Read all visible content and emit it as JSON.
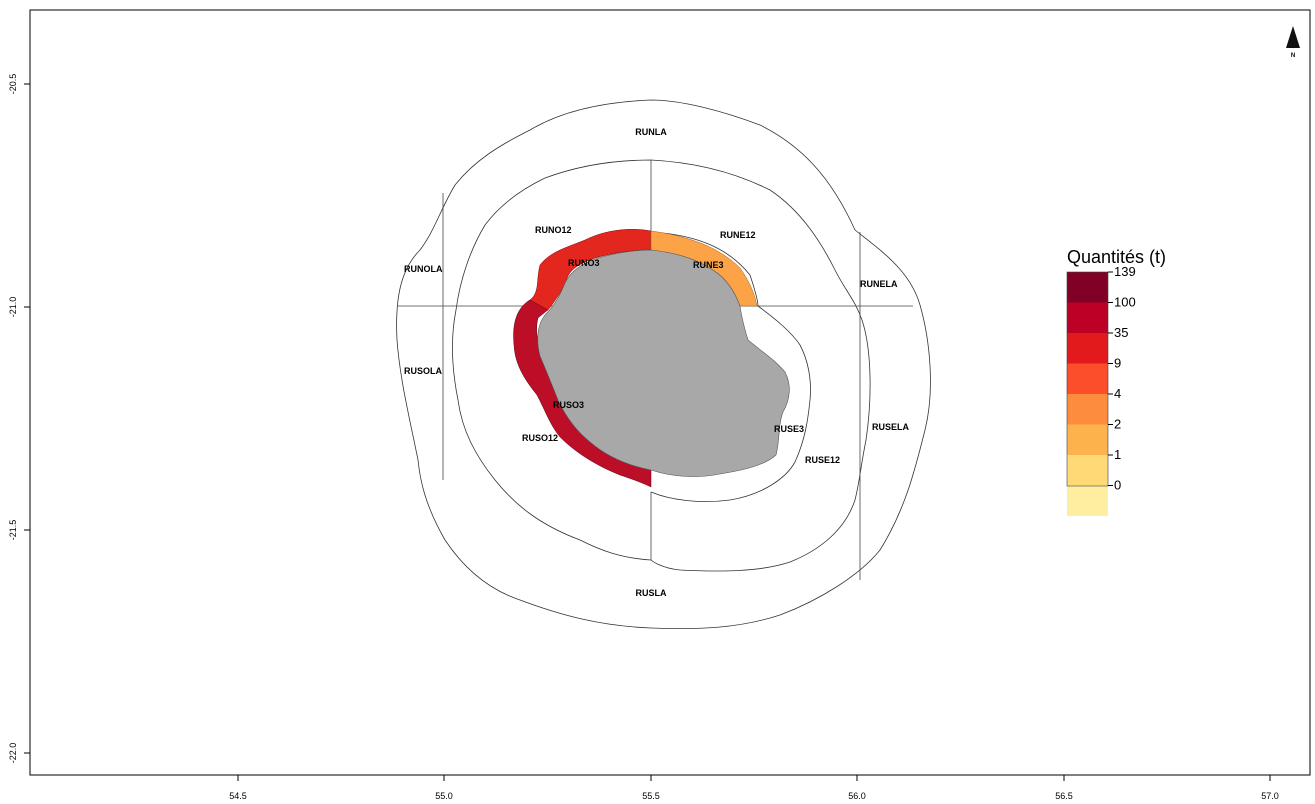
{
  "map": {
    "x_ticks": [
      "54.5",
      "55.0",
      "55.5",
      "56.0",
      "56.5",
      "57.0"
    ],
    "y_ticks": [
      "-20.5",
      "-21.0",
      "-21.5",
      "-22.0"
    ],
    "north_label": "N"
  },
  "zones": [
    {
      "id": "RUNLA",
      "value": ""
    },
    {
      "id": "RUNOLA",
      "value": ""
    },
    {
      "id": "RUNELA",
      "value": ""
    },
    {
      "id": "RUSOLA",
      "value": ""
    },
    {
      "id": "RUSELA",
      "value": ""
    },
    {
      "id": "RUSLA",
      "value": ""
    },
    {
      "id": "RUNO12",
      "value": ""
    },
    {
      "id": "RUNE12",
      "value": ""
    },
    {
      "id": "RUSO12",
      "value": ""
    },
    {
      "id": "RUSE12",
      "value": ""
    },
    {
      "id": "RUNO3",
      "value": ""
    },
    {
      "id": "RUNE3",
      "value": ""
    },
    {
      "id": "RUSO3",
      "value": ""
    },
    {
      "id": "RUSE3",
      "value": ""
    }
  ],
  "legend": {
    "title": "Quantités (t)",
    "breaks": [
      "139",
      "100",
      "35",
      "9",
      "4",
      "2",
      "1",
      "0"
    ],
    "colors": [
      "#800026",
      "#bd0026",
      "#e31a1c",
      "#fc4e2a",
      "#fd8d3c",
      "#feb24c",
      "#fed976",
      "#ffeda0"
    ]
  },
  "colors": {
    "island": "#a8a8a8",
    "zone_no3": "#e3261e",
    "zone_ne3": "#fca347",
    "zone_so3": "#bd0e28"
  }
}
